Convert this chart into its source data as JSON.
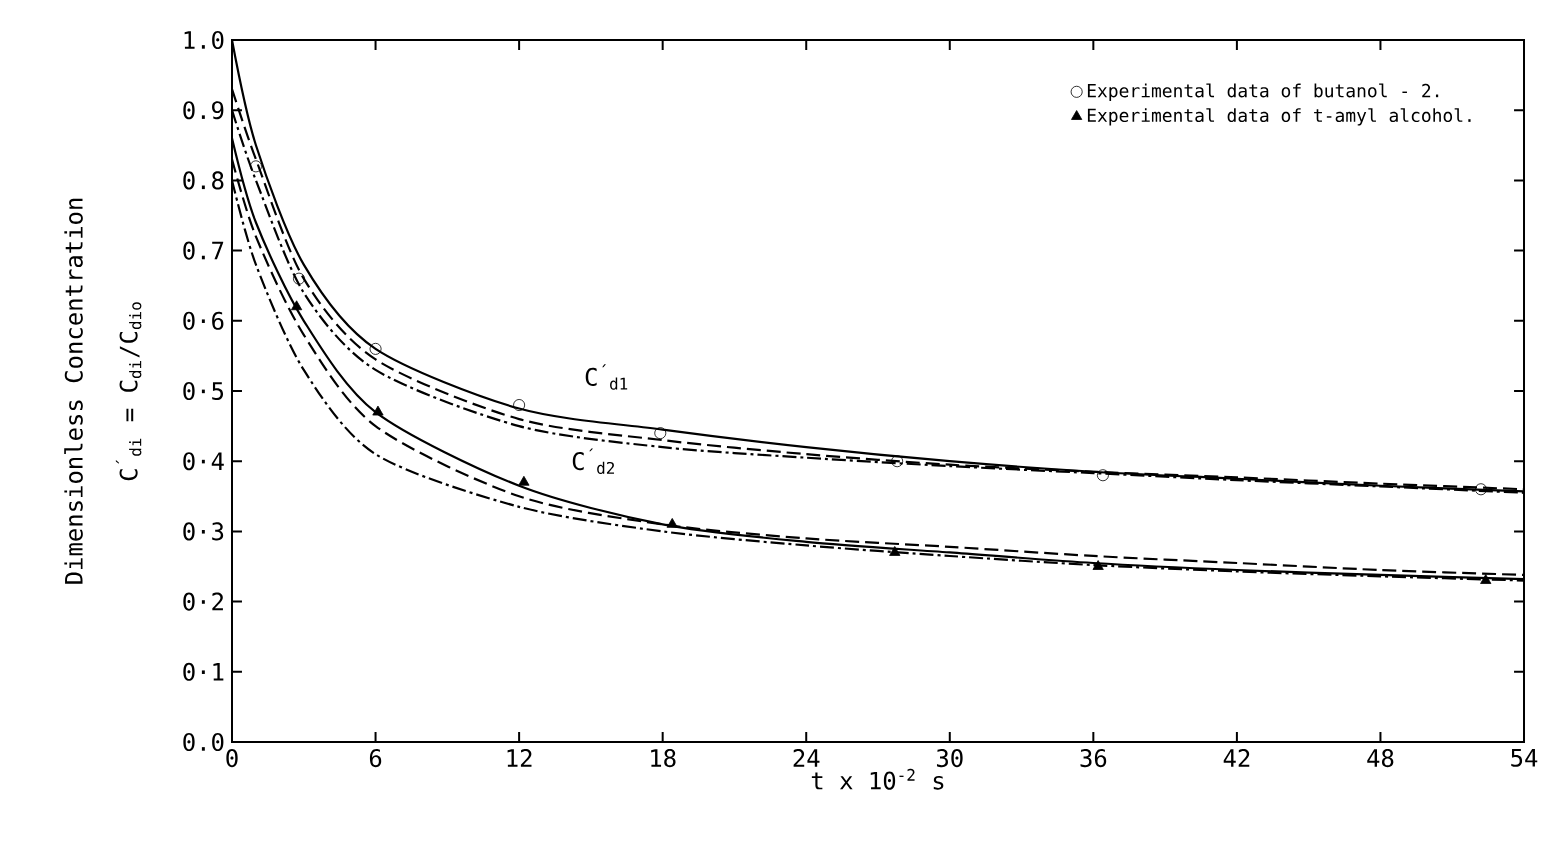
{
  "chart_data": {
    "type": "line",
    "xlabel": "t x 10$^{-2}$ s",
    "ylabel": "Dimensionless Concentration",
    "xlim": [
      0,
      54
    ],
    "ylim": [
      0,
      1
    ],
    "xticks": [
      0,
      6,
      12,
      18,
      24,
      30,
      36,
      42,
      48,
      54
    ],
    "yticks": [
      {
        "value": 0,
        "label": "0.0"
      },
      {
        "value": 0.1,
        "label": "0·1"
      },
      {
        "value": 0.2,
        "label": "0·2"
      },
      {
        "value": 0.3,
        "label": "0·3"
      },
      {
        "value": 0.4,
        "label": "0·4"
      },
      {
        "value": 0.5,
        "label": "0·5"
      },
      {
        "value": 0.6,
        "label": "0·6"
      },
      0.7,
      0.8,
      0.9,
      {
        "value": 1,
        "label": "1.0"
      }
    ],
    "legend": "top right",
    "grid": false,
    "series": [
      {
        "type": "scatter",
        "name": "Experimental data of butanol - 2.",
        "color": "#000000",
        "marker": "circle",
        "x": [
          1.0,
          2.8,
          6.0,
          12.0,
          17.9,
          27.8,
          36.4,
          52.2
        ],
        "values": [
          0.82,
          0.66,
          0.56,
          0.48,
          0.44,
          0.4,
          0.38,
          0.36
        ]
      },
      {
        "type": "scatter",
        "name": "Experimental data of t-amyl alcohol.",
        "color": "#000000",
        "marker": "triangle",
        "x": [
          2.7,
          6.1,
          12.2,
          18.4,
          27.7,
          36.2,
          52.4
        ],
        "values": [
          0.62,
          0.47,
          0.37,
          0.31,
          0.27,
          0.25,
          0.23
        ]
      },
      {
        "color": "#000000",
        "line_style": "solid",
        "x": [
          0,
          1,
          3,
          6,
          12,
          18,
          24,
          30,
          36,
          42,
          48,
          54
        ],
        "values": [
          1.0,
          0.85,
          0.68,
          0.56,
          0.475,
          0.445,
          0.42,
          0.4,
          0.385,
          0.375,
          0.365,
          0.357
        ]
      },
      {
        "color": "#000000",
        "line_style": "dashed",
        "x": [
          0,
          1,
          3,
          6,
          12,
          18,
          24,
          30,
          36,
          42,
          48,
          54
        ],
        "values": [
          0.93,
          0.83,
          0.66,
          0.545,
          0.46,
          0.43,
          0.41,
          0.395,
          0.385,
          0.377,
          0.368,
          0.36
        ]
      },
      {
        "color": "#000000",
        "line_style": "dashdot",
        "x": [
          0,
          1,
          3,
          6,
          12,
          18,
          24,
          30,
          36,
          42,
          48,
          54
        ],
        "values": [
          0.9,
          0.8,
          0.64,
          0.53,
          0.45,
          0.42,
          0.405,
          0.393,
          0.383,
          0.373,
          0.364,
          0.355
        ]
      },
      {
        "color": "#000000",
        "line_style": "solid",
        "x": [
          0,
          1,
          3,
          6,
          12,
          18,
          24,
          30,
          36,
          42,
          48,
          54
        ],
        "values": [
          0.86,
          0.74,
          0.6,
          0.47,
          0.365,
          0.31,
          0.285,
          0.27,
          0.255,
          0.245,
          0.238,
          0.232
        ]
      },
      {
        "color": "#000000",
        "line_style": "dashed",
        "x": [
          0,
          1,
          3,
          6,
          12,
          18,
          24,
          30,
          36,
          42,
          48,
          54
        ],
        "values": [
          0.83,
          0.72,
          0.58,
          0.45,
          0.35,
          0.31,
          0.29,
          0.278,
          0.265,
          0.255,
          0.245,
          0.238
        ]
      },
      {
        "color": "#000000",
        "line_style": "dashdot",
        "x": [
          0,
          1,
          3,
          6,
          12,
          18,
          24,
          30,
          36,
          42,
          48,
          54
        ],
        "values": [
          0.8,
          0.68,
          0.53,
          0.41,
          0.335,
          0.3,
          0.28,
          0.265,
          0.252,
          0.243,
          0.236,
          0.23
        ]
      }
    ],
    "annotations": [
      "C$^{´}$$_{d1}$",
      "C$^{´}$$_{d2}$",
      "C$^{´}$$_{di}$ = C$_{di}$/C$_{dio}$"
    ]
  }
}
